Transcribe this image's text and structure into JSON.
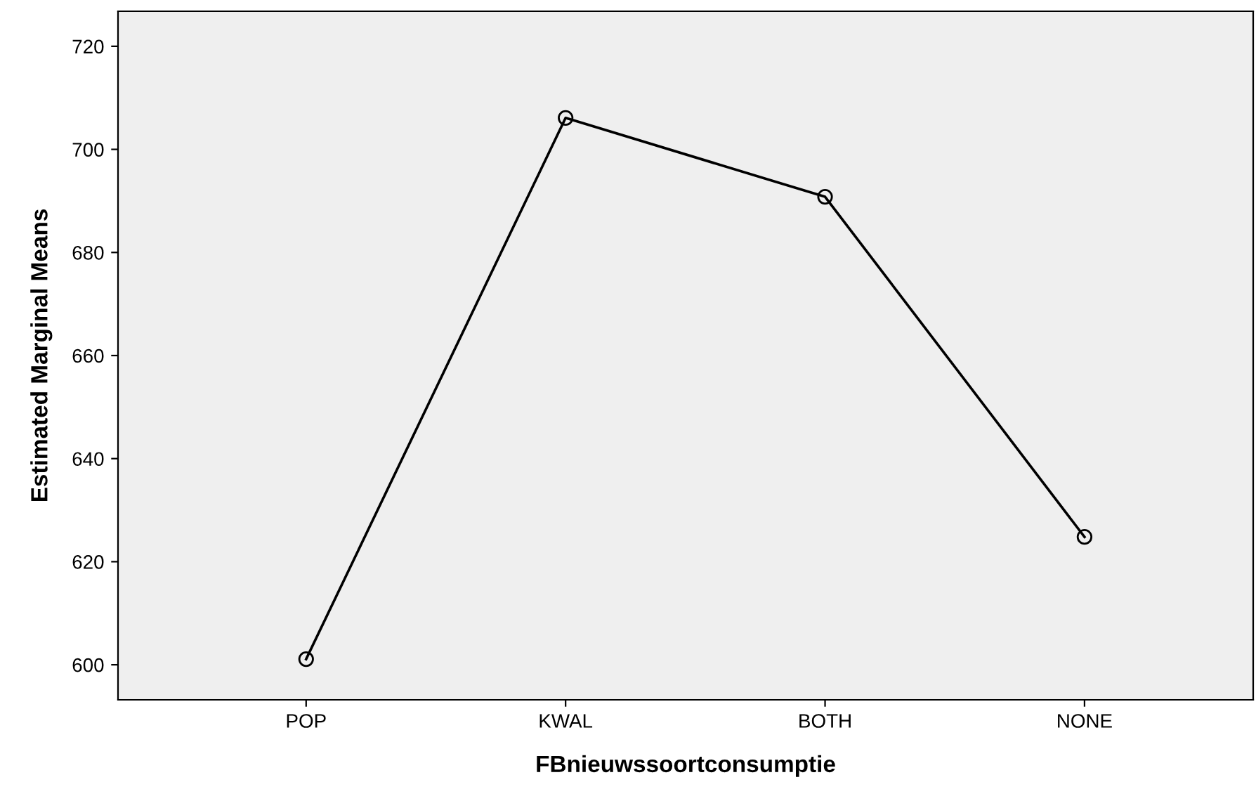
{
  "chart_data": {
    "type": "line",
    "xlabel": "FBnieuwssoortconsumptie",
    "ylabel": "Estimated Marginal Means",
    "categories": [
      "POP",
      "KWAL",
      "BOTH",
      "NONE"
    ],
    "series": [
      {
        "color": "#000000",
        "values": [
          601.1,
          706.1,
          690.8,
          624.8
        ]
      }
    ],
    "ylim": [
      593.2,
      726.8
    ],
    "yticks": [
      600,
      620,
      640,
      660,
      680,
      700,
      720
    ],
    "marker": "circle",
    "line_style": "solid",
    "grid": false,
    "legend": false
  }
}
